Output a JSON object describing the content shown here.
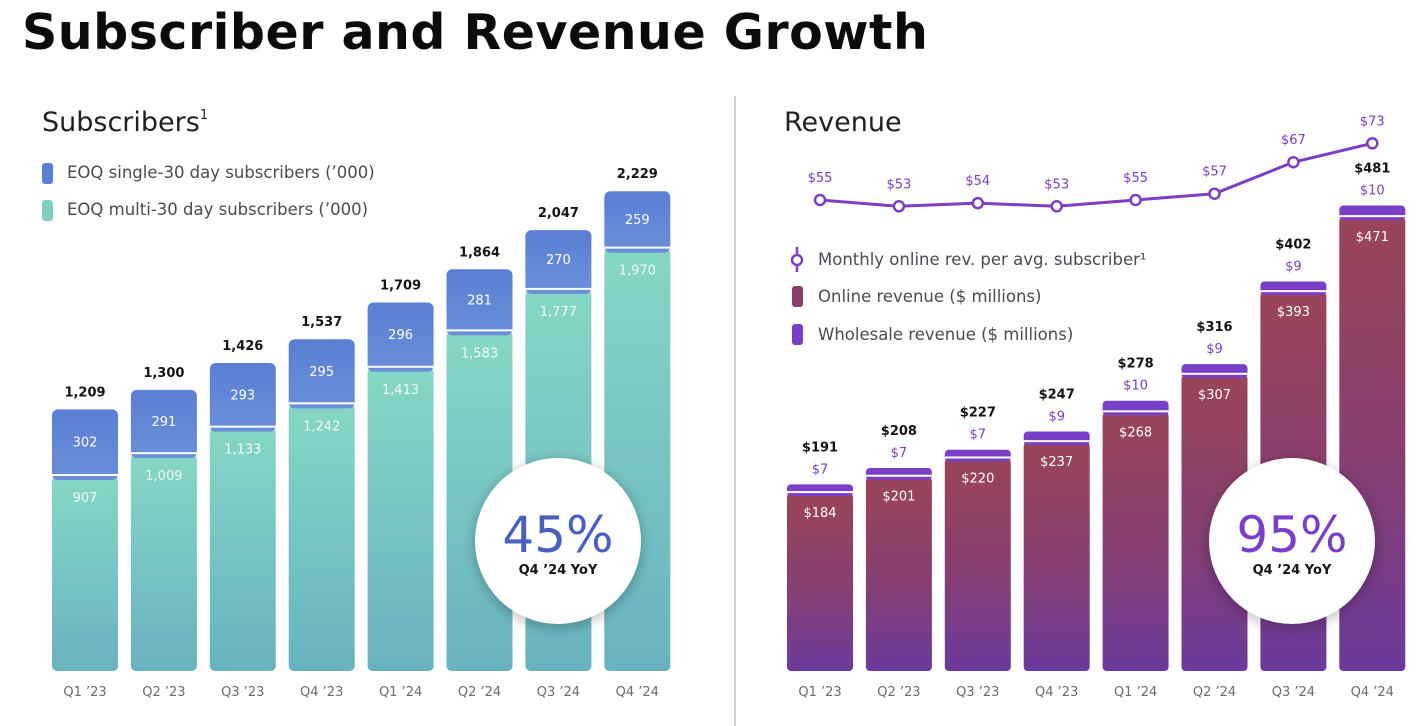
{
  "page": {
    "title": "Subscriber and Revenue Growth"
  },
  "colors": {
    "single_sub": "#5a7fd4",
    "multi_sub": "#7fcfc0",
    "online_rev": "#8a3f6a",
    "wholesale_rev": "#7a3fc8",
    "arpu_line": "#7b3fc4",
    "pct_blue": "#4a5fc0",
    "pct_purple": "#7a3fc8"
  },
  "subscribers": {
    "title": "Subscribers",
    "title_sup": "1",
    "legend": [
      {
        "label": "EOQ single-30 day subscribers (’000)",
        "icon": "blue-square"
      },
      {
        "label": "EOQ multi-30 day subscribers  (’000)",
        "icon": "teal-square"
      }
    ],
    "callout": {
      "value": "45%",
      "label": "Q4 ’24 YoY"
    }
  },
  "revenue": {
    "title": "Revenue",
    "legend": [
      {
        "label": "Monthly online rev. per avg. subscriber¹",
        "icon": "line-marker"
      },
      {
        "label": "Online revenue ($ millions)",
        "icon": "maroon-square"
      },
      {
        "label": "Wholesale revenue ($ millions)",
        "icon": "purple-square"
      }
    ],
    "callout": {
      "value": "95%",
      "label": "Q4 ’24 YoY"
    }
  },
  "chart_data": [
    {
      "type": "bar",
      "stacked": true,
      "title": "Subscribers",
      "categories": [
        "Q1 ’23",
        "Q2 ’23",
        "Q3 ’23",
        "Q4 ’23",
        "Q1 ’24",
        "Q2 ’24",
        "Q3 ’24",
        "Q4 ’24"
      ],
      "series": [
        {
          "name": "EOQ multi-30 day subscribers  (’000)",
          "values": [
            907,
            1009,
            1133,
            1242,
            1413,
            1583,
            1777,
            1970
          ],
          "labels": [
            "907",
            "1,009",
            "1,133",
            "1,242",
            "1,413",
            "1,583",
            "1,777",
            "1,970"
          ]
        },
        {
          "name": "EOQ single-30 day subscribers (’000)",
          "values": [
            302,
            291,
            293,
            295,
            296,
            281,
            270,
            259
          ],
          "labels": [
            "302",
            "291",
            "293",
            "295",
            "296",
            "281",
            "270",
            "259"
          ]
        }
      ],
      "totals": [
        1209,
        1300,
        1426,
        1537,
        1709,
        1864,
        2047,
        2229
      ],
      "total_labels": [
        "1,209",
        "1,300",
        "1,426",
        "1,537",
        "1,709",
        "1,864",
        "2,047",
        "2,229"
      ],
      "grid": false,
      "legend_position": "top-left"
    },
    {
      "type": "bar",
      "stacked": true,
      "title": "Revenue",
      "categories": [
        "Q1 ’23",
        "Q2 ’23",
        "Q3 ’23",
        "Q4 ’23",
        "Q1 ’24",
        "Q2 ’24",
        "Q3 ’24",
        "Q4 ’24"
      ],
      "series": [
        {
          "name": "Online revenue ($ millions)",
          "values": [
            184,
            201,
            220,
            237,
            268,
            307,
            393,
            471
          ],
          "labels": [
            "$184",
            "$201",
            "$220",
            "$237",
            "$268",
            "$307",
            "$393",
            "$471"
          ]
        },
        {
          "name": "Wholesale revenue ($ millions)",
          "values": [
            7,
            7,
            7,
            9,
            10,
            9,
            9,
            10
          ],
          "labels": [
            "$7",
            "$7",
            "$7",
            "$9",
            "$10",
            "$9",
            "$9",
            "$10"
          ]
        }
      ],
      "totals": [
        191,
        208,
        227,
        247,
        278,
        316,
        402,
        481
      ],
      "total_labels": [
        "$191",
        "$208",
        "$227",
        "$247",
        "$278",
        "$316",
        "$402",
        "$481"
      ],
      "line": {
        "name": "Monthly online rev. per avg. subscriber¹",
        "values": [
          55,
          53,
          54,
          53,
          55,
          57,
          67,
          73
        ],
        "labels": [
          "$55",
          "$53",
          "$54",
          "$53",
          "$55",
          "$57",
          "$67",
          "$73"
        ]
      },
      "grid": false,
      "legend_position": "top-left"
    }
  ]
}
